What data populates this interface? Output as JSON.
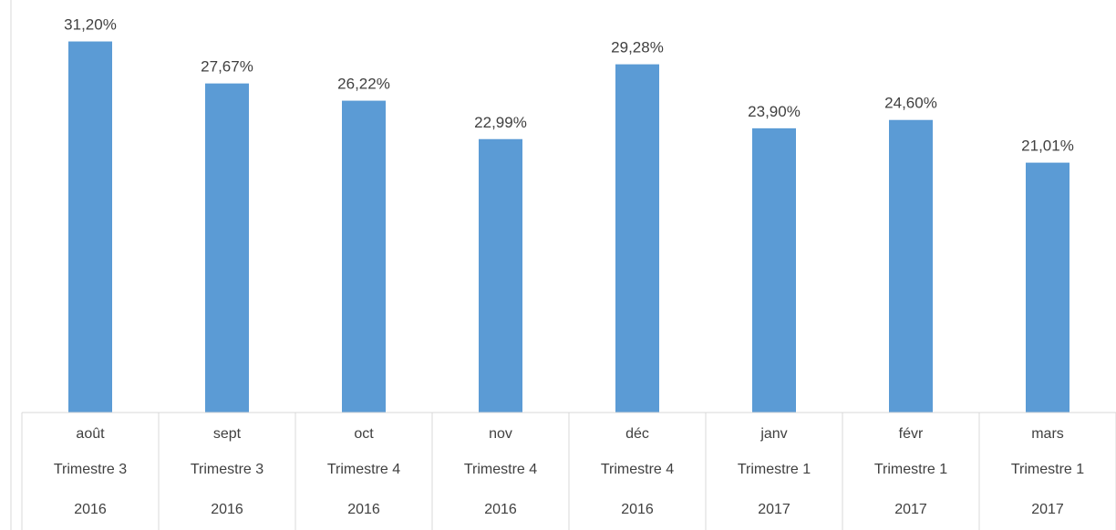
{
  "chart_data": {
    "type": "bar",
    "title": "",
    "xlabel": "",
    "ylabel": "",
    "ylim": [
      0,
      32
    ],
    "grid": false,
    "legend": "none",
    "bar_color": "#5B9BD5",
    "categories": [
      {
        "month": "août",
        "quarter": "Trimestre 3",
        "year": "2016"
      },
      {
        "month": "sept",
        "quarter": "Trimestre 3",
        "year": "2016"
      },
      {
        "month": "oct",
        "quarter": "Trimestre 4",
        "year": "2016"
      },
      {
        "month": "nov",
        "quarter": "Trimestre 4",
        "year": "2016"
      },
      {
        "month": "déc",
        "quarter": "Trimestre 4",
        "year": "2016"
      },
      {
        "month": "janv",
        "quarter": "Trimestre 1",
        "year": "2017"
      },
      {
        "month": "févr",
        "quarter": "Trimestre 1",
        "year": "2017"
      },
      {
        "month": "mars",
        "quarter": "Trimestre 1",
        "year": "2017"
      }
    ],
    "values": [
      31.2,
      27.67,
      26.22,
      22.99,
      29.28,
      23.9,
      24.6,
      21.01
    ],
    "value_labels": [
      "31,20%",
      "27,67%",
      "26,22%",
      "22,99%",
      "29,28%",
      "23,90%",
      "24,60%",
      "21,01%"
    ]
  }
}
